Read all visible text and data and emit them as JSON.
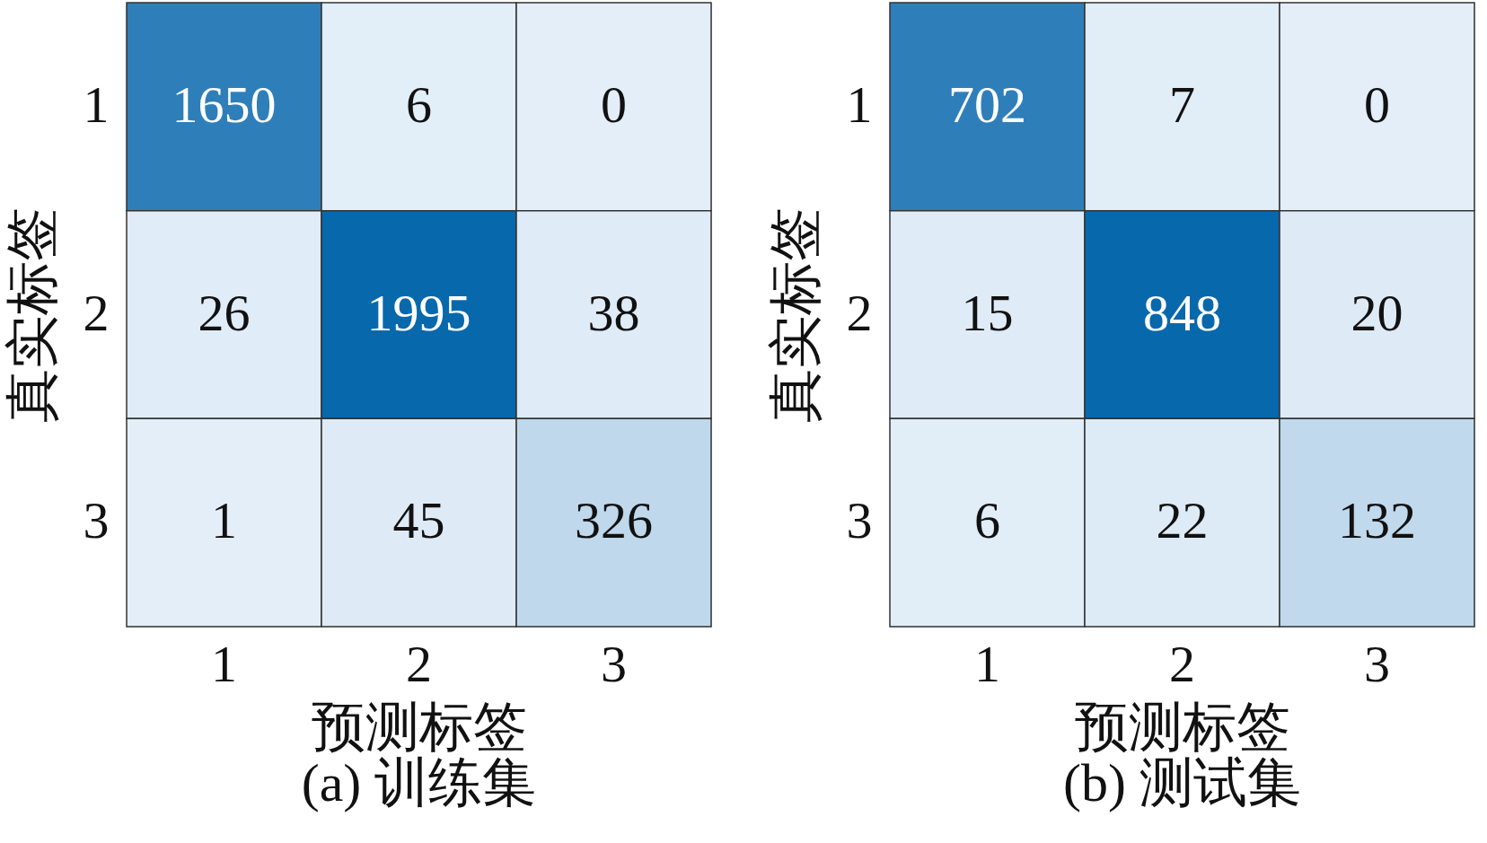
{
  "chart_data": [
    {
      "type": "heatmap",
      "title": "(a) 训练集",
      "xlabel": "预测标签",
      "ylabel": "真实标签",
      "categories": [
        "1",
        "2",
        "3"
      ],
      "y_categories": [
        "1",
        "2",
        "3"
      ],
      "cells": [
        [
          1650,
          6,
          0
        ],
        [
          26,
          1995,
          38
        ],
        [
          1,
          45,
          326
        ]
      ],
      "colors": [
        [
          "#2e7fb9",
          "#e2eef8",
          "#e3eef8"
        ],
        [
          "#e0ecf7",
          "#0868ac",
          "#dfebf7"
        ],
        [
          "#e3eef8",
          "#deebf6",
          "#bfd8ec"
        ]
      ],
      "data_labels": true
    },
    {
      "type": "heatmap",
      "title": "(b) 测试集",
      "xlabel": "预测标签",
      "ylabel": "真实标签",
      "categories": [
        "1",
        "2",
        "3"
      ],
      "y_categories": [
        "1",
        "2",
        "3"
      ],
      "cells": [
        [
          702,
          7,
          0
        ],
        [
          15,
          848,
          20
        ],
        [
          6,
          22,
          132
        ]
      ],
      "colors": [
        [
          "#2e7fb9",
          "#e1edf7",
          "#e3eef8"
        ],
        [
          "#dfecf7",
          "#0868ac",
          "#deebf6"
        ],
        [
          "#e1edf7",
          "#ddebf6",
          "#c1d9ec"
        ]
      ],
      "data_labels": true
    }
  ]
}
